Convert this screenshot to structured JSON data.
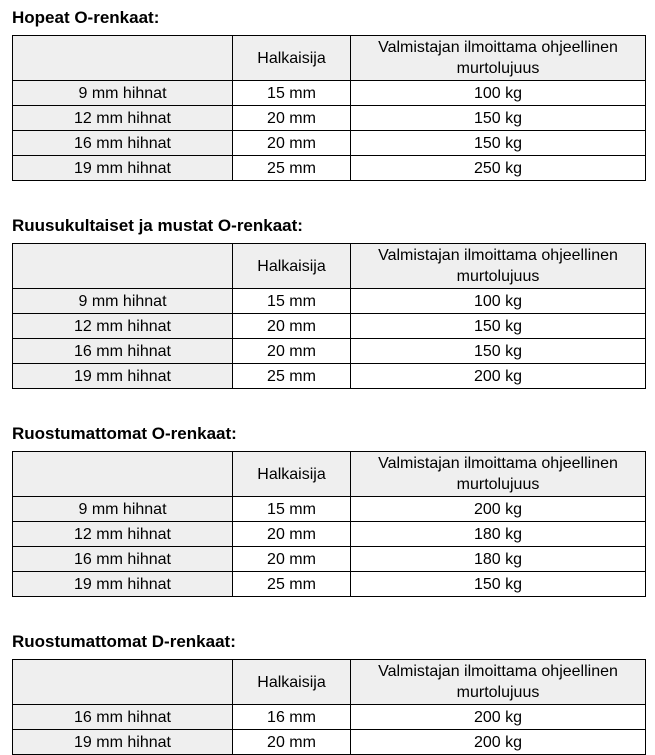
{
  "style": {
    "header_bg": "#efefef",
    "border_color": "#000000",
    "text_color": "#000000",
    "page_bg": "#ffffff"
  },
  "tables": [
    {
      "title": "Hopeat O-renkaat:",
      "headers": [
        "",
        "Halkaisija",
        "Valmistajan ilmoittama ohjeellinen murtolujuus"
      ],
      "rows": [
        [
          "9 mm hihnat",
          "15 mm",
          "100 kg"
        ],
        [
          "12 mm hihnat",
          "20 mm",
          "150 kg"
        ],
        [
          "16 mm hihnat",
          "20 mm",
          "150 kg"
        ],
        [
          "19 mm hihnat",
          "25 mm",
          "250 kg"
        ]
      ]
    },
    {
      "title": "Ruusukultaiset ja mustat O-renkaat:",
      "headers": [
        "",
        "Halkaisija",
        "Valmistajan ilmoittama ohjeellinen murtolujuus"
      ],
      "rows": [
        [
          "9 mm hihnat",
          "15 mm",
          "100 kg"
        ],
        [
          "12 mm hihnat",
          "20 mm",
          "150 kg"
        ],
        [
          "16 mm hihnat",
          "20 mm",
          "150 kg"
        ],
        [
          "19 mm hihnat",
          "25 mm",
          "200 kg"
        ]
      ]
    },
    {
      "title": "Ruostumattomat O-renkaat:",
      "headers": [
        "",
        "Halkaisija",
        "Valmistajan ilmoittama ohjeellinen murtolujuus"
      ],
      "rows": [
        [
          "9 mm hihnat",
          "15 mm",
          "200 kg"
        ],
        [
          "12 mm hihnat",
          "20 mm",
          "180 kg"
        ],
        [
          "16 mm hihnat",
          "20 mm",
          "180 kg"
        ],
        [
          "19 mm hihnat",
          "25 mm",
          "150 kg"
        ]
      ]
    },
    {
      "title": "Ruostumattomat D-renkaat:",
      "headers": [
        "",
        "Halkaisija",
        "Valmistajan ilmoittama ohjeellinen murtolujuus"
      ],
      "rows": [
        [
          "16 mm hihnat",
          "16 mm",
          "200 kg"
        ],
        [
          "19 mm hihnat",
          "20 mm",
          "200 kg"
        ]
      ]
    }
  ]
}
